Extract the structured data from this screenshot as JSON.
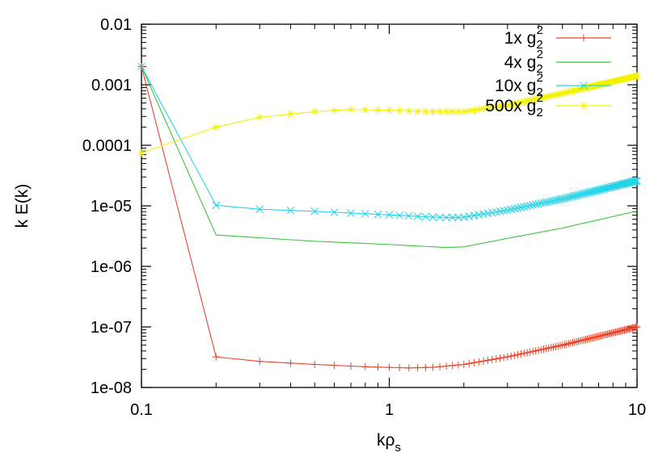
{
  "chart_data": {
    "type": "line",
    "title": "",
    "xlabel": "kρ_s",
    "ylabel": "k E(k)",
    "xscale": "log",
    "yscale": "log",
    "xlim": [
      0.1,
      10
    ],
    "ylim": [
      1e-08,
      0.01
    ],
    "grid": false,
    "legend_position": "top-right",
    "x_ticks": [
      {
        "value": 0.1,
        "label": "0.1"
      },
      {
        "value": 1,
        "label": "1"
      },
      {
        "value": 10,
        "label": "10"
      }
    ],
    "y_ticks": [
      {
        "value": 0.01,
        "label": "0.01"
      },
      {
        "value": 0.001,
        "label": "0.001"
      },
      {
        "value": 0.0001,
        "label": "0.0001"
      },
      {
        "value": 1e-05,
        "label": "1e-05"
      },
      {
        "value": 1e-06,
        "label": "1e-06"
      },
      {
        "value": 1e-07,
        "label": "1e-07"
      },
      {
        "value": 1e-08,
        "label": "1e-08"
      }
    ],
    "series": [
      {
        "name": "1x g_2^2",
        "label_main": "1x g",
        "label_sub": "2",
        "label_sup": "2",
        "color": "#e8462b",
        "marker": "plus",
        "anchors": [
          [
            0.1,
            0.002
          ],
          [
            0.2,
            3.2e-08
          ],
          [
            0.3,
            2.7e-08
          ],
          [
            0.5,
            2.4e-08
          ],
          [
            0.8,
            2.2e-08
          ],
          [
            1.2,
            2.1e-08
          ],
          [
            1.5,
            2.15e-08
          ],
          [
            2.0,
            2.4e-08
          ],
          [
            3.0,
            3.2e-08
          ],
          [
            5.0,
            5e-08
          ],
          [
            10,
            1e-07
          ]
        ]
      },
      {
        "name": "4x g_2^2",
        "label_main": "4x g",
        "label_sub": "2",
        "label_sup": "2",
        "color": "#3cc43c",
        "marker": "none",
        "anchors": [
          [
            0.1,
            0.002
          ],
          [
            0.2,
            3.3e-06
          ],
          [
            0.5,
            2.6e-06
          ],
          [
            1.0,
            2.3e-06
          ],
          [
            1.7,
            2.05e-06
          ],
          [
            2.0,
            2.1e-06
          ],
          [
            3.0,
            2.9e-06
          ],
          [
            5.0,
            4.3e-06
          ],
          [
            10,
            8.2e-06
          ]
        ]
      },
      {
        "name": "10x g_2^2",
        "label_main": "10x g",
        "label_sub": "2",
        "label_sup": "2",
        "color": "#22d4e8",
        "marker": "x",
        "anchors": [
          [
            0.1,
            0.002
          ],
          [
            0.2,
            1.02e-05
          ],
          [
            0.3,
            8.8e-06
          ],
          [
            0.5,
            8.1e-06
          ],
          [
            0.8,
            7.4e-06
          ],
          [
            1.0,
            7.1e-06
          ],
          [
            1.5,
            6.5e-06
          ],
          [
            1.8,
            6.4e-06
          ],
          [
            2.0,
            6.5e-06
          ],
          [
            3.0,
            8.5e-06
          ],
          [
            5.0,
            1.3e-05
          ],
          [
            10,
            2.6e-05
          ]
        ]
      },
      {
        "name": "500x g_2^2",
        "label_main": "500x g",
        "label_sub": "2",
        "label_sup": "2",
        "color": "#f2f200",
        "marker": "star",
        "anchors": [
          [
            0.1,
            7.5e-05
          ],
          [
            0.2,
            0.0002
          ],
          [
            0.3,
            0.00029
          ],
          [
            0.5,
            0.00036
          ],
          [
            0.7,
            0.00039
          ],
          [
            1.0,
            0.00038
          ],
          [
            1.5,
            0.00036
          ],
          [
            2.0,
            0.00036
          ],
          [
            3.0,
            0.00046
          ],
          [
            5.0,
            0.00072
          ],
          [
            10,
            0.0014
          ]
        ]
      }
    ]
  }
}
